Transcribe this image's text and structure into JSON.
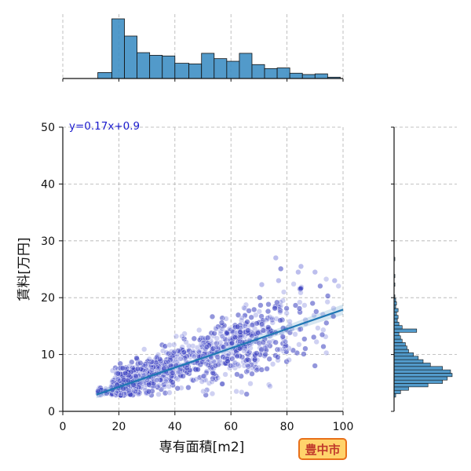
{
  "chart_data": {
    "type": "scatter",
    "title": "",
    "xlabel": "専有面積[m2]",
    "ylabel": "賃料[万円]",
    "xlim": [
      0,
      100
    ],
    "ylim": [
      0,
      50
    ],
    "xticks": [
      0,
      20,
      40,
      60,
      80,
      100
    ],
    "yticks": [
      0,
      10,
      20,
      30,
      40,
      50
    ],
    "grid": true,
    "colors": {
      "points": "#6a6fd6",
      "point_edge": "#2222aa",
      "regression": "#1f77b4",
      "histogram": "#3f8fc4",
      "badge_bg": "#ffd36b",
      "badge_border": "#e8701a",
      "badge_text": "#c0392b",
      "equation": "#1a1acd"
    },
    "regression": {
      "label": "y=0.17x+0.9",
      "slope": 0.17,
      "intercept": 0.9,
      "x_range": [
        12,
        100
      ]
    },
    "point_count": 1200,
    "top_histogram": {
      "bin_edges": [
        0,
        12.5,
        17.5,
        20,
        22.5,
        25,
        27.5,
        30,
        32.5,
        35,
        37.5,
        40,
        42.5,
        45,
        47.5,
        50,
        52.5,
        55,
        57.5,
        60,
        62.5,
        65,
        67.5,
        70,
        72.5,
        75,
        77.5,
        80,
        82.5,
        85,
        87.5,
        90,
        92.5,
        95,
        100
      ],
      "bins": [
        {
          "x0": 12.5,
          "x1": 17.5,
          "count": 9
        },
        {
          "x0": 17.5,
          "x1": 22,
          "count": 90
        },
        {
          "x0": 22,
          "x1": 26.5,
          "count": 64
        },
        {
          "x0": 26.5,
          "x1": 31,
          "count": 39
        },
        {
          "x0": 31,
          "x1": 35.5,
          "count": 35
        },
        {
          "x0": 35.5,
          "x1": 40,
          "count": 34
        },
        {
          "x0": 40,
          "x1": 45,
          "count": 23
        },
        {
          "x0": 45,
          "x1": 49.5,
          "count": 22
        },
        {
          "x0": 49.5,
          "x1": 54,
          "count": 38
        },
        {
          "x0": 54,
          "x1": 58.5,
          "count": 30
        },
        {
          "x0": 58.5,
          "x1": 63,
          "count": 26
        },
        {
          "x0": 63,
          "x1": 67.5,
          "count": 38
        },
        {
          "x0": 67.5,
          "x1": 72,
          "count": 21
        },
        {
          "x0": 72,
          "x1": 76.5,
          "count": 15
        },
        {
          "x0": 76.5,
          "x1": 81,
          "count": 16
        },
        {
          "x0": 81,
          "x1": 85.5,
          "count": 8
        },
        {
          "x0": 85.5,
          "x1": 90,
          "count": 6
        },
        {
          "x0": 90,
          "x1": 94.5,
          "count": 7
        },
        {
          "x0": 94.5,
          "x1": 99,
          "count": 2
        }
      ]
    },
    "right_histogram": {
      "bins": [
        {
          "y0": 2.5,
          "y1": 3.1,
          "count": 2
        },
        {
          "y0": 3.1,
          "y1": 3.7,
          "count": 8
        },
        {
          "y0": 3.7,
          "y1": 4.3,
          "count": 18
        },
        {
          "y0": 4.3,
          "y1": 4.9,
          "count": 42
        },
        {
          "y0": 4.9,
          "y1": 5.5,
          "count": 60
        },
        {
          "y0": 5.5,
          "y1": 6.1,
          "count": 66
        },
        {
          "y0": 6.1,
          "y1": 6.7,
          "count": 72
        },
        {
          "y0": 6.7,
          "y1": 7.3,
          "count": 70
        },
        {
          "y0": 7.3,
          "y1": 7.9,
          "count": 60
        },
        {
          "y0": 7.9,
          "y1": 8.5,
          "count": 45
        },
        {
          "y0": 8.5,
          "y1": 9.1,
          "count": 36
        },
        {
          "y0": 9.1,
          "y1": 9.7,
          "count": 30
        },
        {
          "y0": 9.7,
          "y1": 10.3,
          "count": 24
        },
        {
          "y0": 10.3,
          "y1": 10.9,
          "count": 18
        },
        {
          "y0": 10.9,
          "y1": 11.5,
          "count": 16
        },
        {
          "y0": 11.5,
          "y1": 12.1,
          "count": 14
        },
        {
          "y0": 12.1,
          "y1": 12.7,
          "count": 10
        },
        {
          "y0": 12.7,
          "y1": 13.3,
          "count": 8
        },
        {
          "y0": 13.3,
          "y1": 13.9,
          "count": 6
        },
        {
          "y0": 13.9,
          "y1": 14.5,
          "count": 28
        },
        {
          "y0": 14.5,
          "y1": 15.1,
          "count": 10
        },
        {
          "y0": 15.1,
          "y1": 15.7,
          "count": 6
        },
        {
          "y0": 15.7,
          "y1": 16.3,
          "count": 4
        },
        {
          "y0": 16.3,
          "y1": 16.9,
          "count": 5
        },
        {
          "y0": 16.9,
          "y1": 17.5,
          "count": 3
        },
        {
          "y0": 17.5,
          "y1": 18.1,
          "count": 5
        },
        {
          "y0": 18.1,
          "y1": 18.7,
          "count": 2
        },
        {
          "y0": 18.7,
          "y1": 19.3,
          "count": 3
        },
        {
          "y0": 19.3,
          "y1": 19.9,
          "count": 2
        },
        {
          "y0": 19.9,
          "y1": 20.5,
          "count": 1
        },
        {
          "y0": 22,
          "y1": 22.6,
          "count": 1
        },
        {
          "y0": 23.5,
          "y1": 24.1,
          "count": 1
        },
        {
          "y0": 26.5,
          "y1": 27.1,
          "count": 1
        }
      ]
    }
  },
  "badge": {
    "text": "豊中市"
  }
}
